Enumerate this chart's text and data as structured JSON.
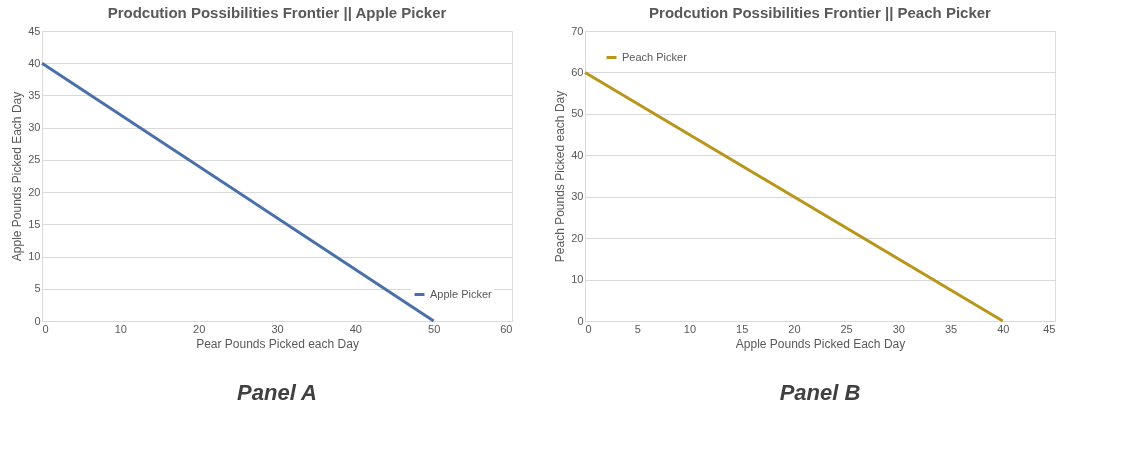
{
  "chart_data": [
    {
      "type": "line",
      "title": "Prodcution Possibilities Frontier || Apple Picker",
      "xlabel": "Pear Pounds Picked each Day",
      "ylabel": "Apple Pounds Picked Each Day",
      "x": [
        0,
        50
      ],
      "series": [
        {
          "name": "Apple Picker",
          "color": "#4a70aa",
          "values": [
            40,
            0
          ]
        }
      ],
      "xlim": [
        0,
        60
      ],
      "xticks": [
        0,
        10,
        20,
        30,
        40,
        50,
        60
      ],
      "ylim": [
        0,
        45
      ],
      "yticks": [
        0,
        5,
        10,
        15,
        20,
        25,
        30,
        35,
        40,
        45
      ],
      "grid": "y",
      "legend": "bottom right",
      "marker": "none",
      "annotations": [
        "Panel A"
      ]
    },
    {
      "type": "line",
      "title": "Prodcution Possibilities Frontier || Peach Picker",
      "xlabel": "Apple Pounds Picked Each Day",
      "ylabel": "Peach Pounds Picked each Day",
      "x": [
        0,
        40
      ],
      "series": [
        {
          "name": "Peach Picker",
          "color": "#b8961c",
          "values": [
            60,
            0
          ]
        }
      ],
      "xlim": [
        0,
        45
      ],
      "xticks": [
        0,
        5,
        10,
        15,
        20,
        25,
        30,
        35,
        40,
        45
      ],
      "ylim": [
        0,
        70
      ],
      "yticks": [
        0,
        10,
        20,
        30,
        40,
        50,
        60,
        70
      ],
      "grid": "y",
      "legend": "top left",
      "marker": "none",
      "annotations": [
        "Panel B"
      ]
    }
  ]
}
